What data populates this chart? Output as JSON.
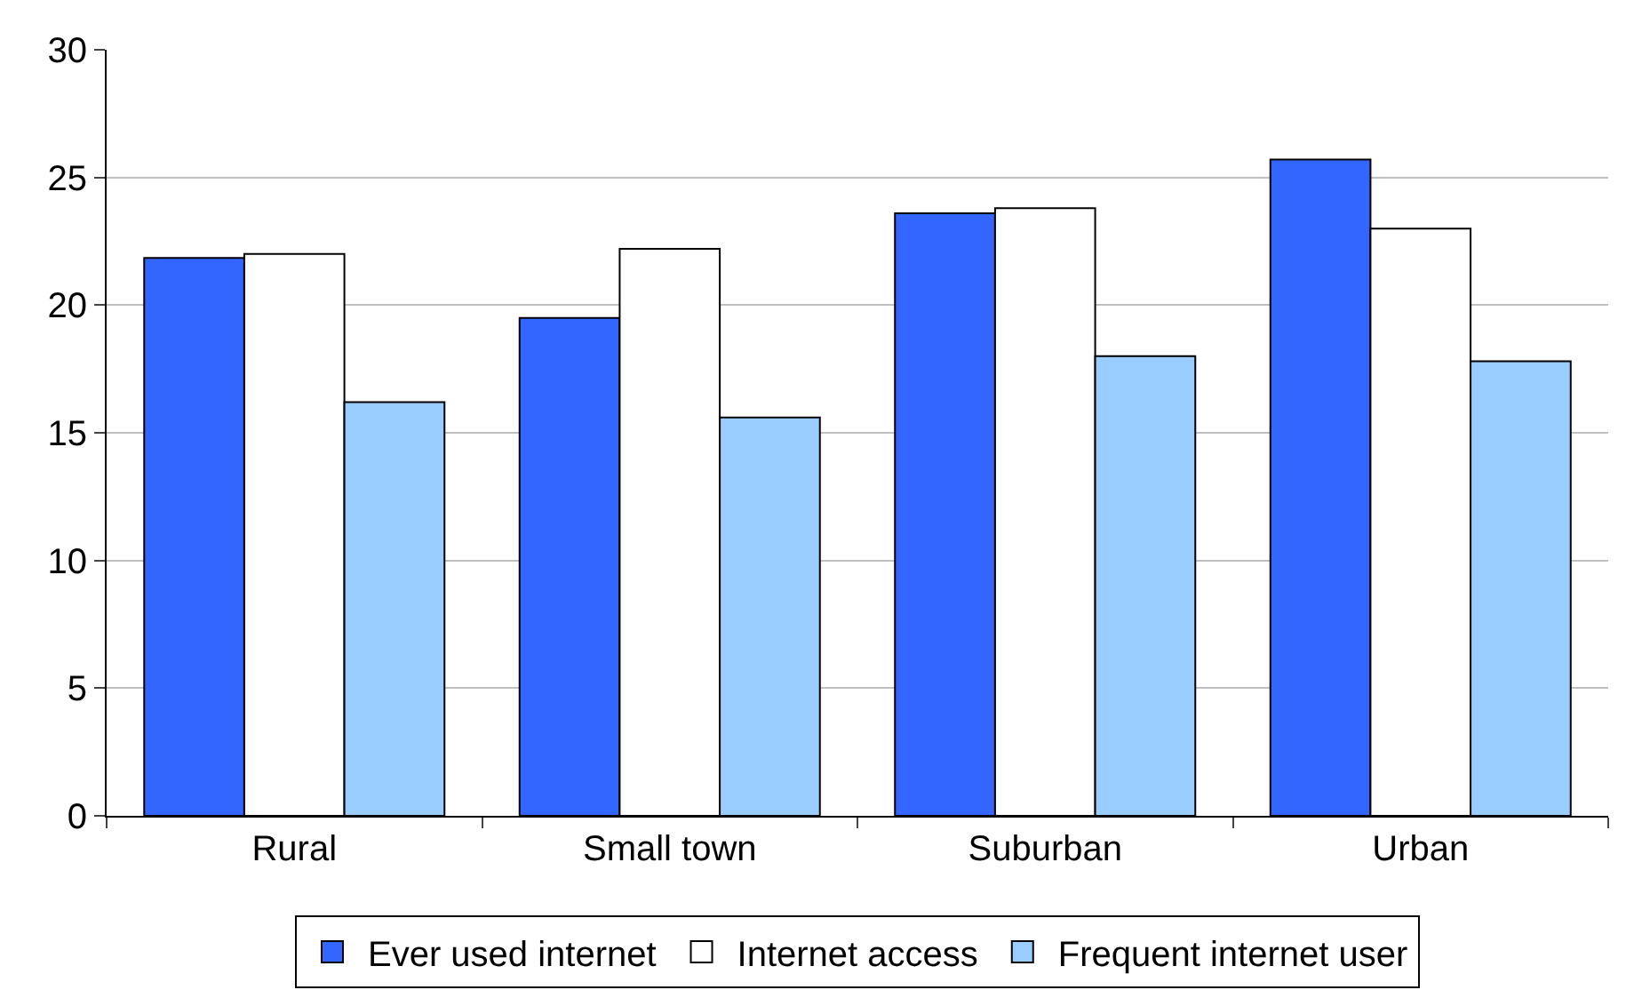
{
  "chart_data": {
    "type": "bar",
    "categories": [
      "Rural",
      "Small town",
      "Suburban",
      "Urban"
    ],
    "series": [
      {
        "name": "Ever used internet",
        "color": "#3366ff",
        "values": [
          21.85,
          19.5,
          23.6,
          25.7
        ]
      },
      {
        "name": "Internet access",
        "color": "#ffffff",
        "values": [
          22.0,
          22.2,
          23.8,
          23.0
        ]
      },
      {
        "name": "Frequent internet user",
        "color": "#99ccff",
        "values": [
          16.2,
          15.6,
          18.0,
          17.8
        ]
      }
    ],
    "ylim": [
      0,
      30
    ],
    "yticks": [
      0,
      5,
      10,
      15,
      20,
      25,
      30
    ],
    "grid": "y",
    "legend": "bottom"
  }
}
